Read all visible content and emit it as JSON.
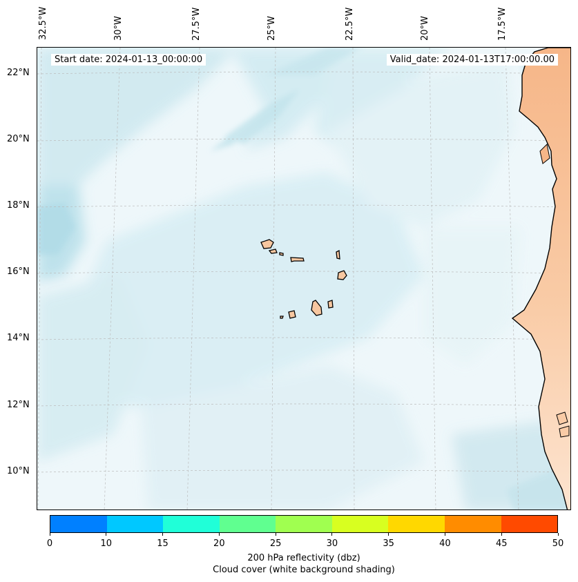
{
  "map": {
    "start_date": "Start date: 2024-01-13_00:00:00",
    "valid_date": "Valid_date: 2024-01-13T17:00:00.00",
    "lon_ticks": [
      "32.5°W",
      "30°W",
      "27.5°W",
      "25°W",
      "22.5°W",
      "20°W",
      "17.5°W"
    ],
    "lat_ticks": [
      "22°N",
      "20°N",
      "18°N",
      "16°N",
      "14°N",
      "12°N",
      "10°N"
    ],
    "colors": {
      "cloud": "#bfe3ec",
      "land": "#f7bd90",
      "coast": "#000000",
      "grid": "#bbbbbb"
    }
  },
  "colorbar": {
    "ticks": [
      "0",
      "10",
      "15",
      "20",
      "25",
      "30",
      "35",
      "40",
      "45",
      "50"
    ],
    "colors": [
      "#0080ff",
      "#00c8ff",
      "#20ffd8",
      "#60ff90",
      "#a0ff50",
      "#d8ff20",
      "#ffd800",
      "#ff8c00",
      "#ff4a00"
    ],
    "label_line1": "200 hPa reflectivity (dbz)",
    "label_line2": "Cloud cover (white background shading)"
  }
}
